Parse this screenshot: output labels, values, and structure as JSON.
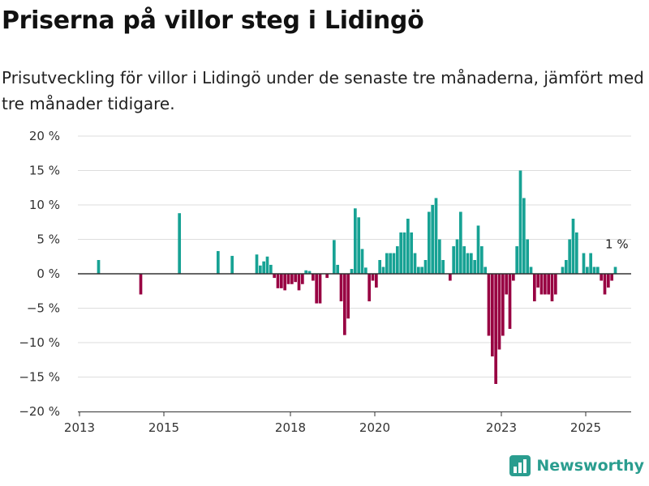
{
  "title": "Priserna på villor steg i Lidingö",
  "subtitle": "Prisutveckling för villor i Lidingö under de senaste tre månaderna, jämfört med tre månader tidigare.",
  "brand": {
    "name": "Newsworthy",
    "icon": "newsworthy-logo-icon"
  },
  "colors": {
    "positive": "#17a294",
    "negative": "#980042",
    "zero_line": "#333333",
    "grid": "#dddddd"
  },
  "chart_data": {
    "type": "bar",
    "xlim": [
      "2013-01",
      "2025-12"
    ],
    "ylim": [
      -20,
      20
    ],
    "yticks": [
      "20 %",
      "15 %",
      "10 %",
      "5 %",
      "0 %",
      "−5 %",
      "−10 %",
      "−15 %",
      "−20 %"
    ],
    "ytick_values": [
      20,
      15,
      10,
      5,
      0,
      -5,
      -10,
      -15,
      -20
    ],
    "xticks": [
      "2013",
      "2015",
      "2018",
      "2020",
      "2023",
      "2025"
    ],
    "xtick_dates": [
      "2013-01",
      "2015-01",
      "2018-01",
      "2020-01",
      "2023-01",
      "2025-01"
    ],
    "grid": true,
    "annotation": {
      "text": "1 %",
      "date": "2025-08",
      "value": 1
    },
    "series": [
      {
        "data": [
          {
            "date": "2013-06",
            "value": 2
          },
          {
            "date": "2014-06",
            "value": -3
          },
          {
            "date": "2015-05",
            "value": 8.8
          },
          {
            "date": "2016-04",
            "value": 3.3
          },
          {
            "date": "2016-08",
            "value": 2.6
          },
          {
            "date": "2017-03",
            "value": 2.8
          },
          {
            "date": "2017-04",
            "value": 1.2
          },
          {
            "date": "2017-05",
            "value": 1.8
          },
          {
            "date": "2017-06",
            "value": 2.5
          },
          {
            "date": "2017-07",
            "value": 1.3
          },
          {
            "date": "2017-08",
            "value": -0.6
          },
          {
            "date": "2017-09",
            "value": -2.1
          },
          {
            "date": "2017-10",
            "value": -2.1
          },
          {
            "date": "2017-11",
            "value": -2.4
          },
          {
            "date": "2017-12",
            "value": -1.5
          },
          {
            "date": "2018-01",
            "value": -1.5
          },
          {
            "date": "2018-02",
            "value": -1.2
          },
          {
            "date": "2018-03",
            "value": -2.4
          },
          {
            "date": "2018-04",
            "value": -1.5
          },
          {
            "date": "2018-05",
            "value": 0.5
          },
          {
            "date": "2018-06",
            "value": 0.4
          },
          {
            "date": "2018-07",
            "value": -1
          },
          {
            "date": "2018-08",
            "value": -4.3
          },
          {
            "date": "2018-09",
            "value": -4.3
          },
          {
            "date": "2018-11",
            "value": -0.6
          },
          {
            "date": "2019-01",
            "value": 4.9
          },
          {
            "date": "2019-02",
            "value": 1.3
          },
          {
            "date": "2019-03",
            "value": -4
          },
          {
            "date": "2019-04",
            "value": -8.9
          },
          {
            "date": "2019-05",
            "value": -6.5
          },
          {
            "date": "2019-06",
            "value": 0.7
          },
          {
            "date": "2019-07",
            "value": 9.5
          },
          {
            "date": "2019-08",
            "value": 8.2
          },
          {
            "date": "2019-09",
            "value": 3.6
          },
          {
            "date": "2019-10",
            "value": 0.9
          },
          {
            "date": "2019-11",
            "value": -4
          },
          {
            "date": "2019-12",
            "value": -1
          },
          {
            "date": "2020-01",
            "value": -2
          },
          {
            "date": "2020-02",
            "value": 2
          },
          {
            "date": "2020-03",
            "value": 1
          },
          {
            "date": "2020-04",
            "value": 3
          },
          {
            "date": "2020-05",
            "value": 3
          },
          {
            "date": "2020-06",
            "value": 3
          },
          {
            "date": "2020-07",
            "value": 4
          },
          {
            "date": "2020-08",
            "value": 6
          },
          {
            "date": "2020-09",
            "value": 6
          },
          {
            "date": "2020-10",
            "value": 8
          },
          {
            "date": "2020-11",
            "value": 6
          },
          {
            "date": "2020-12",
            "value": 3
          },
          {
            "date": "2021-01",
            "value": 1
          },
          {
            "date": "2021-02",
            "value": 1
          },
          {
            "date": "2021-03",
            "value": 2
          },
          {
            "date": "2021-04",
            "value": 9
          },
          {
            "date": "2021-05",
            "value": 10
          },
          {
            "date": "2021-06",
            "value": 11
          },
          {
            "date": "2021-07",
            "value": 5
          },
          {
            "date": "2021-08",
            "value": 2
          },
          {
            "date": "2021-10",
            "value": -1
          },
          {
            "date": "2021-11",
            "value": 4
          },
          {
            "date": "2021-12",
            "value": 5
          },
          {
            "date": "2022-01",
            "value": 9
          },
          {
            "date": "2022-02",
            "value": 4
          },
          {
            "date": "2022-03",
            "value": 3
          },
          {
            "date": "2022-04",
            "value": 3
          },
          {
            "date": "2022-05",
            "value": 2
          },
          {
            "date": "2022-06",
            "value": 7
          },
          {
            "date": "2022-07",
            "value": 4
          },
          {
            "date": "2022-08",
            "value": 1
          },
          {
            "date": "2022-09",
            "value": -9
          },
          {
            "date": "2022-10",
            "value": -12
          },
          {
            "date": "2022-11",
            "value": -16
          },
          {
            "date": "2022-12",
            "value": -11
          },
          {
            "date": "2023-01",
            "value": -9
          },
          {
            "date": "2023-02",
            "value": -3
          },
          {
            "date": "2023-03",
            "value": -8
          },
          {
            "date": "2023-04",
            "value": -1
          },
          {
            "date": "2023-05",
            "value": 4
          },
          {
            "date": "2023-06",
            "value": 15
          },
          {
            "date": "2023-07",
            "value": 11
          },
          {
            "date": "2023-08",
            "value": 5
          },
          {
            "date": "2023-09",
            "value": 1
          },
          {
            "date": "2023-10",
            "value": -4
          },
          {
            "date": "2023-11",
            "value": -2
          },
          {
            "date": "2023-12",
            "value": -3
          },
          {
            "date": "2024-01",
            "value": -3
          },
          {
            "date": "2024-02",
            "value": -3
          },
          {
            "date": "2024-03",
            "value": -4
          },
          {
            "date": "2024-04",
            "value": -3
          },
          {
            "date": "2024-06",
            "value": 1
          },
          {
            "date": "2024-07",
            "value": 2
          },
          {
            "date": "2024-08",
            "value": 5
          },
          {
            "date": "2024-09",
            "value": 8
          },
          {
            "date": "2024-10",
            "value": 6
          },
          {
            "date": "2024-12",
            "value": 3
          },
          {
            "date": "2025-01",
            "value": 1
          },
          {
            "date": "2025-02",
            "value": 3
          },
          {
            "date": "2025-03",
            "value": 1
          },
          {
            "date": "2025-04",
            "value": 1
          },
          {
            "date": "2025-05",
            "value": -1
          },
          {
            "date": "2025-06",
            "value": -3
          },
          {
            "date": "2025-07",
            "value": -2
          },
          {
            "date": "2025-08",
            "value": -1
          },
          {
            "date": "2025-09",
            "value": 1
          }
        ]
      }
    ]
  }
}
